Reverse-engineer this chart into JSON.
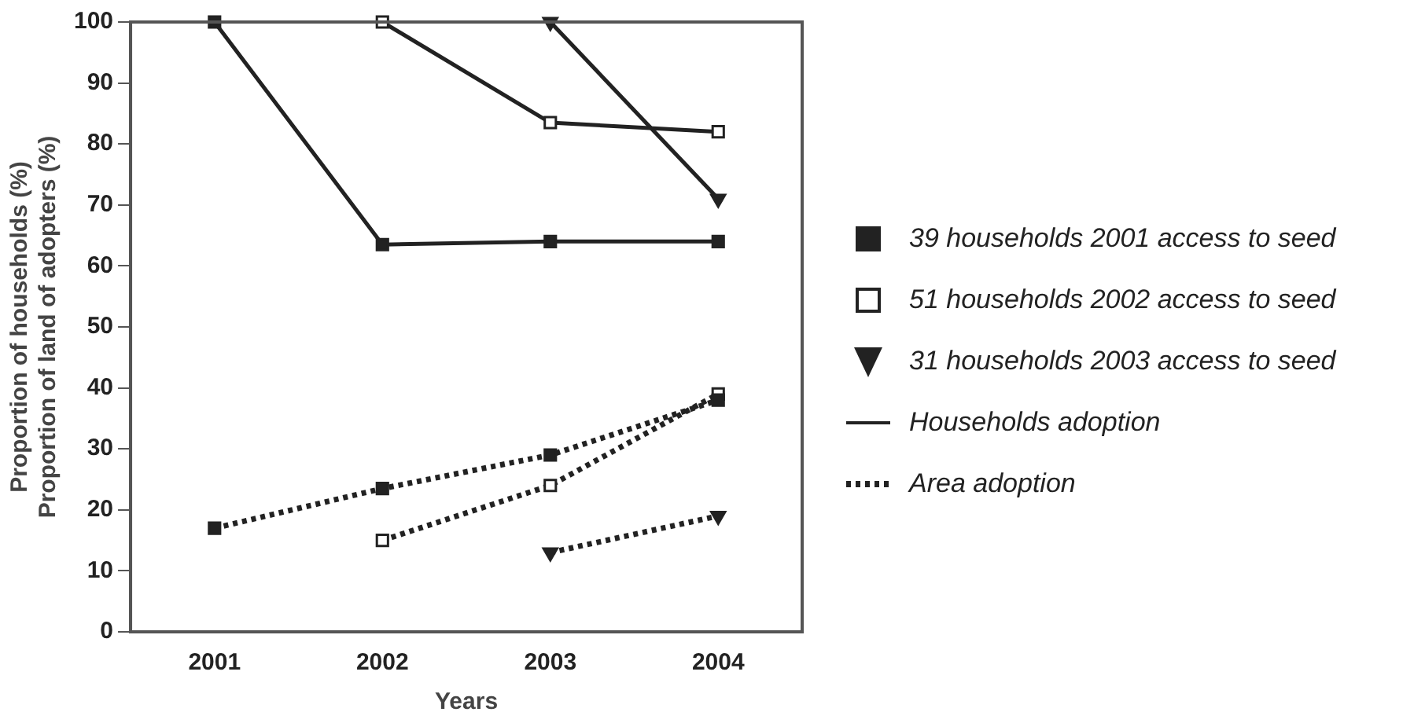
{
  "chart_data": {
    "type": "line",
    "xlabel": "Years",
    "ylabel": "Proportion of households (%)\nProportion of land of adopters (%)",
    "categories": [
      "2001",
      "2002",
      "2003",
      "2004"
    ],
    "ylim": [
      0,
      100
    ],
    "yticks": [
      0,
      10,
      20,
      30,
      40,
      50,
      60,
      70,
      80,
      90,
      100
    ],
    "grid": false,
    "legend": "right",
    "series": [
      {
        "name": "39 households 2001 access to seed",
        "color": "#222222",
        "marker": "square",
        "line_style": "solid",
        "values": [
          100,
          63.5,
          64,
          64
        ]
      },
      {
        "name": "51 households 2002 access to seed",
        "color": "#222222",
        "marker": "square",
        "colors": [
          "#ffffff",
          "#ffffff",
          "#ffffff",
          "#ffffff"
        ],
        "line_style": "solid",
        "values": [
          null,
          100,
          83.5,
          82
        ]
      },
      {
        "name": "31 households 2003 access to seed",
        "color": "#222222",
        "marker": "triangle",
        "line_style": "solid",
        "values": [
          null,
          null,
          100,
          71
        ]
      },
      {
        "color": "#222222",
        "marker": "square",
        "line_style": "dotted",
        "values": [
          17,
          23.5,
          29,
          38
        ]
      },
      {
        "color": "#222222",
        "marker": "square",
        "colors": [
          "#ffffff",
          "#ffffff",
          "#ffffff",
          "#ffffff"
        ],
        "line_style": "dotted",
        "values": [
          null,
          15,
          24,
          39
        ]
      },
      {
        "color": "#222222",
        "marker": "triangle",
        "line_style": "dotted",
        "values": [
          null,
          null,
          13,
          19
        ]
      }
    ],
    "annotations": [
      "Households adoption",
      "Area adoption"
    ]
  }
}
